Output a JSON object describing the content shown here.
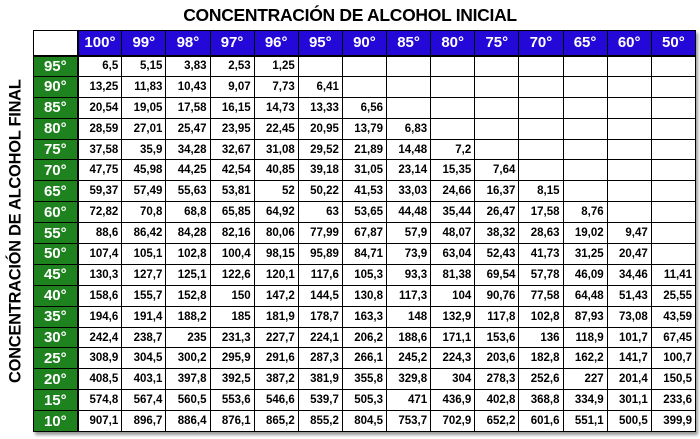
{
  "title": "CONCENTRACIÓN DE ALCOHOL INICIAL",
  "y_axis_label": "CONCENTRACIÓN DE ALCOHOL FINAL",
  "colors": {
    "column_header_bg": "#2408d8",
    "column_header_text": "#ffffff",
    "row_header_bg": "#1e821e",
    "row_header_text": "#ffffff",
    "grid_border": "#000000",
    "cell_bg": "#ffffff",
    "cell_text": "#000000"
  },
  "chart_data": {
    "type": "table",
    "title": "CONCENTRACIÓN DE ALCOHOL INICIAL",
    "row_axis_label": "CONCENTRACIÓN DE ALCOHOL FINAL",
    "columns": [
      "100°",
      "99°",
      "98°",
      "97°",
      "96°",
      "95°",
      "90°",
      "85°",
      "80°",
      "75°",
      "70°",
      "65°",
      "60°",
      "50°"
    ],
    "rows": [
      {
        "label": "95°",
        "values": [
          "6,5",
          "5,15",
          "3,83",
          "2,53",
          "1,25",
          "",
          "",
          "",
          "",
          "",
          "",
          "",
          "",
          ""
        ]
      },
      {
        "label": "90°",
        "values": [
          "13,25",
          "11,83",
          "10,43",
          "9,07",
          "7,73",
          "6,41",
          "",
          "",
          "",
          "",
          "",
          "",
          "",
          ""
        ]
      },
      {
        "label": "85°",
        "values": [
          "20,54",
          "19,05",
          "17,58",
          "16,15",
          "14,73",
          "13,33",
          "6,56",
          "",
          "",
          "",
          "",
          "",
          "",
          ""
        ]
      },
      {
        "label": "80°",
        "values": [
          "28,59",
          "27,01",
          "25,47",
          "23,95",
          "22,45",
          "20,95",
          "13,79",
          "6,83",
          "",
          "",
          "",
          "",
          "",
          ""
        ]
      },
      {
        "label": "75°",
        "values": [
          "37,58",
          "35,9",
          "34,28",
          "32,67",
          "31,08",
          "29,52",
          "21,89",
          "14,48",
          "7,2",
          "",
          "",
          "",
          "",
          ""
        ]
      },
      {
        "label": "70°",
        "values": [
          "47,75",
          "45,98",
          "44,25",
          "42,54",
          "40,85",
          "39,18",
          "31,05",
          "23,14",
          "15,35",
          "7,64",
          "",
          "",
          "",
          ""
        ]
      },
      {
        "label": "65°",
        "values": [
          "59,37",
          "57,49",
          "55,63",
          "53,81",
          "52",
          "50,22",
          "41,53",
          "33,03",
          "24,66",
          "16,37",
          "8,15",
          "",
          "",
          ""
        ]
      },
      {
        "label": "60°",
        "values": [
          "72,82",
          "70,8",
          "68,8",
          "65,85",
          "64,92",
          "63",
          "53,65",
          "44,48",
          "35,44",
          "26,47",
          "17,58",
          "8,76",
          "",
          ""
        ]
      },
      {
        "label": "55°",
        "values": [
          "88,6",
          "86,42",
          "84,28",
          "82,16",
          "80,06",
          "77,99",
          "67,87",
          "57,9",
          "48,07",
          "38,32",
          "28,63",
          "19,02",
          "9,47",
          ""
        ]
      },
      {
        "label": "50°",
        "values": [
          "107,4",
          "105,1",
          "102,8",
          "100,4",
          "98,15",
          "95,89",
          "84,71",
          "73,9",
          "63,04",
          "52,43",
          "41,73",
          "31,25",
          "20,47",
          ""
        ]
      },
      {
        "label": "45°",
        "values": [
          "130,3",
          "127,7",
          "125,1",
          "122,6",
          "120,1",
          "117,6",
          "105,3",
          "93,3",
          "81,38",
          "69,54",
          "57,78",
          "46,09",
          "34,46",
          "11,41"
        ]
      },
      {
        "label": "40°",
        "values": [
          "158,6",
          "155,7",
          "152,8",
          "150",
          "147,2",
          "144,5",
          "130,8",
          "117,3",
          "104",
          "90,76",
          "77,58",
          "64,48",
          "51,43",
          "25,55"
        ]
      },
      {
        "label": "35°",
        "values": [
          "194,6",
          "191,4",
          "188,2",
          "185",
          "181,9",
          "178,7",
          "163,3",
          "148",
          "132,9",
          "117,8",
          "102,8",
          "87,93",
          "73,08",
          "43,59"
        ]
      },
      {
        "label": "30°",
        "values": [
          "242,4",
          "238,7",
          "235",
          "231,3",
          "227,7",
          "224,1",
          "206,2",
          "188,6",
          "171,1",
          "153,6",
          "136",
          "118,9",
          "101,7",
          "67,45"
        ]
      },
      {
        "label": "25°",
        "values": [
          "308,9",
          "304,5",
          "300,2",
          "295,9",
          "291,6",
          "287,3",
          "266,1",
          "245,2",
          "224,3",
          "203,6",
          "182,8",
          "162,2",
          "141,7",
          "100,7"
        ]
      },
      {
        "label": "20°",
        "values": [
          "408,5",
          "403,1",
          "397,8",
          "392,5",
          "387,2",
          "381,9",
          "355,8",
          "329,8",
          "304",
          "278,3",
          "252,6",
          "227",
          "201,4",
          "150,5"
        ]
      },
      {
        "label": "15°",
        "values": [
          "574,8",
          "567,4",
          "560,5",
          "553,6",
          "546,6",
          "539,7",
          "505,3",
          "471",
          "436,9",
          "402,8",
          "368,8",
          "334,9",
          "301,1",
          "233,6"
        ]
      },
      {
        "label": "10°",
        "values": [
          "907,1",
          "896,7",
          "886,4",
          "876,1",
          "865,2",
          "855,2",
          "804,5",
          "753,7",
          "702,9",
          "652,2",
          "601,6",
          "551,1",
          "500,5",
          "399,9"
        ]
      }
    ]
  }
}
